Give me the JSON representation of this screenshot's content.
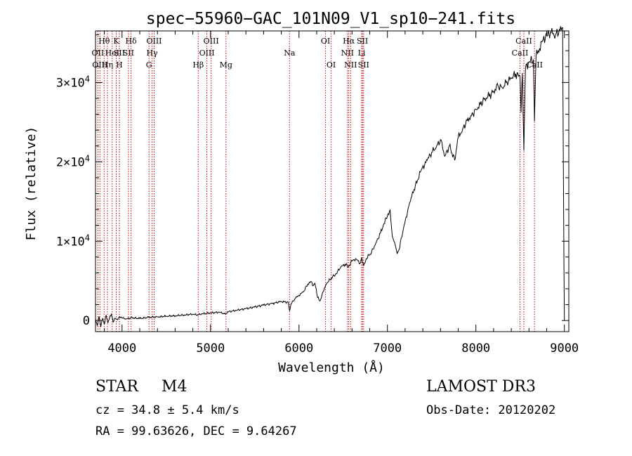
{
  "chart_data": {
    "type": "line",
    "title": "spec−55960−GAC_101N09_V1_sp10−241.fits",
    "xlabel": "Wavelength (Å)",
    "ylabel": "Flux (relative)",
    "xlim": [
      3700,
      9050
    ],
    "ylim": [
      -1400,
      36500
    ],
    "xticks": [
      {
        "value": 4000,
        "label": "4000"
      },
      {
        "value": 5000,
        "label": "5000"
      },
      {
        "value": 6000,
        "label": "6000"
      },
      {
        "value": 7000,
        "label": "7000"
      },
      {
        "value": 8000,
        "label": "8000"
      },
      {
        "value": 9000,
        "label": "9000"
      }
    ],
    "yticks": [
      {
        "value": 0,
        "mantissa": "0",
        "exp": ""
      },
      {
        "value": 10000,
        "mantissa": "1×10",
        "exp": "4"
      },
      {
        "value": 20000,
        "mantissa": "2×10",
        "exp": "4"
      },
      {
        "value": 30000,
        "mantissa": "3×10",
        "exp": "4"
      }
    ],
    "grid": false,
    "series": [
      {
        "name": "spectrum",
        "color": "#000000",
        "points": [
          [
            3700,
            200
          ],
          [
            3720,
            -600
          ],
          [
            3740,
            500
          ],
          [
            3760,
            -800
          ],
          [
            3780,
            300
          ],
          [
            3800,
            -500
          ],
          [
            3820,
            700
          ],
          [
            3840,
            -300
          ],
          [
            3860,
            400
          ],
          [
            3880,
            800
          ],
          [
            3900,
            -200
          ],
          [
            3920,
            300
          ],
          [
            3950,
            100
          ],
          [
            3970,
            500
          ],
          [
            4000,
            300
          ],
          [
            4050,
            200
          ],
          [
            4100,
            350
          ],
          [
            4200,
            250
          ],
          [
            4300,
            400
          ],
          [
            4400,
            450
          ],
          [
            4500,
            550
          ],
          [
            4600,
            600
          ],
          [
            4700,
            700
          ],
          [
            4800,
            800
          ],
          [
            4860,
            700
          ],
          [
            4900,
            850
          ],
          [
            5000,
            950
          ],
          [
            5100,
            1050
          ],
          [
            5170,
            800
          ],
          [
            5200,
            1100
          ],
          [
            5300,
            1300
          ],
          [
            5400,
            1500
          ],
          [
            5500,
            1700
          ],
          [
            5600,
            1950
          ],
          [
            5700,
            2150
          ],
          [
            5800,
            2400
          ],
          [
            5880,
            2300
          ],
          [
            5893,
            1200
          ],
          [
            5910,
            2100
          ],
          [
            5960,
            2800
          ],
          [
            6000,
            3200
          ],
          [
            6050,
            3600
          ],
          [
            6100,
            4600
          ],
          [
            6140,
            4900
          ],
          [
            6160,
            4400
          ],
          [
            6180,
            4700
          ],
          [
            6210,
            2900
          ],
          [
            6240,
            2500
          ],
          [
            6270,
            3600
          ],
          [
            6320,
            4800
          ],
          [
            6380,
            5500
          ],
          [
            6420,
            5900
          ],
          [
            6470,
            6700
          ],
          [
            6520,
            7100
          ],
          [
            6560,
            6800
          ],
          [
            6600,
            7500
          ],
          [
            6640,
            7800
          ],
          [
            6690,
            7200
          ],
          [
            6710,
            7900
          ],
          [
            6730,
            6900
          ],
          [
            6760,
            7800
          ],
          [
            6820,
            8600
          ],
          [
            6870,
            9800
          ],
          [
            6920,
            11000
          ],
          [
            6960,
            12200
          ],
          [
            7000,
            13200
          ],
          [
            7030,
            14000
          ],
          [
            7055,
            10600
          ],
          [
            7080,
            9900
          ],
          [
            7110,
            8400
          ],
          [
            7130,
            8900
          ],
          [
            7180,
            11500
          ],
          [
            7250,
            14800
          ],
          [
            7300,
            16500
          ],
          [
            7380,
            18900
          ],
          [
            7450,
            20200
          ],
          [
            7500,
            21200
          ],
          [
            7550,
            21800
          ],
          [
            7600,
            22800
          ],
          [
            7650,
            20700
          ],
          [
            7700,
            22000
          ],
          [
            7760,
            20200
          ],
          [
            7800,
            23100
          ],
          [
            7850,
            24100
          ],
          [
            7900,
            25200
          ],
          [
            7950,
            25800
          ],
          [
            8000,
            26600
          ],
          [
            8050,
            27200
          ],
          [
            8100,
            28000
          ],
          [
            8150,
            28300
          ],
          [
            8200,
            28900
          ],
          [
            8250,
            29600
          ],
          [
            8300,
            29300
          ],
          [
            8350,
            30100
          ],
          [
            8400,
            30500
          ],
          [
            8450,
            31100
          ],
          [
            8498,
            30700
          ],
          [
            8510,
            26200
          ],
          [
            8525,
            31200
          ],
          [
            8542,
            21400
          ],
          [
            8560,
            31800
          ],
          [
            8600,
            32600
          ],
          [
            8650,
            32900
          ],
          [
            8662,
            25100
          ],
          [
            8680,
            33400
          ],
          [
            8720,
            34300
          ],
          [
            8760,
            35400
          ],
          [
            8800,
            35900
          ],
          [
            8850,
            36300
          ],
          [
            8900,
            36000
          ],
          [
            8950,
            36600
          ],
          [
            8980,
            36900
          ],
          [
            8995,
            7000
          ],
          [
            9000,
            0
          ]
        ]
      }
    ],
    "lines": [
      {
        "label": "Hθ",
        "wl": 3798,
        "row": 0
      },
      {
        "label": "OII",
        "wl": 3727,
        "row": 1
      },
      {
        "label": "OIII",
        "wl": 3750,
        "row": 2
      },
      {
        "label": "Hη",
        "wl": 3835,
        "row": 2
      },
      {
        "label": "HeI",
        "wl": 3889,
        "row": 1
      },
      {
        "label": "K",
        "wl": 3934,
        "row": 0
      },
      {
        "label": "SII",
        "wl": 3970,
        "row": 1
      },
      {
        "label": "H",
        "wl": 3969,
        "row": 2
      },
      {
        "label": "Hδ",
        "wl": 4102,
        "row": 0
      },
      {
        "label": "SII",
        "wl": 4072,
        "row": 1
      },
      {
        "label": "OIII",
        "wl": 4363,
        "row": 0
      },
      {
        "label": "Hγ",
        "wl": 4340,
        "row": 1
      },
      {
        "label": "G",
        "wl": 4305,
        "row": 2
      },
      {
        "label": "Hβ",
        "wl": 4861,
        "row": 2
      },
      {
        "label": "OIII",
        "wl": 5007,
        "row": 0
      },
      {
        "label": "OIII",
        "wl": 4959,
        "row": 1
      },
      {
        "label": "Mg",
        "wl": 5175,
        "row": 2
      },
      {
        "label": "Na",
        "wl": 5893,
        "row": 1
      },
      {
        "label": "OI",
        "wl": 6300,
        "row": 0
      },
      {
        "label": "OI",
        "wl": 6364,
        "row": 2
      },
      {
        "label": "Hα",
        "wl": 6563,
        "row": 0
      },
      {
        "label": "NII",
        "wl": 6548,
        "row": 1
      },
      {
        "label": "NII",
        "wl": 6584,
        "row": 2
      },
      {
        "label": "SII",
        "wl": 6717,
        "row": 0
      },
      {
        "label": "Li",
        "wl": 6708,
        "row": 1
      },
      {
        "label": "SII",
        "wl": 6731,
        "row": 2
      },
      {
        "label": "CaII",
        "wl": 8542,
        "row": 0
      },
      {
        "label": "CaII",
        "wl": 8498,
        "row": 1
      },
      {
        "label": "CaII",
        "wl": 8662,
        "row": 2
      }
    ],
    "line_color": "#cc0000"
  },
  "info": {
    "class_label": "STAR",
    "subclass": "M4",
    "survey": "LAMOST DR3",
    "cz": "cz = 34.8 ± 5.4 km/s",
    "obs_date": "Obs-Date: 20120202",
    "coords": "RA =  99.63626, DEC =   9.64267"
  }
}
